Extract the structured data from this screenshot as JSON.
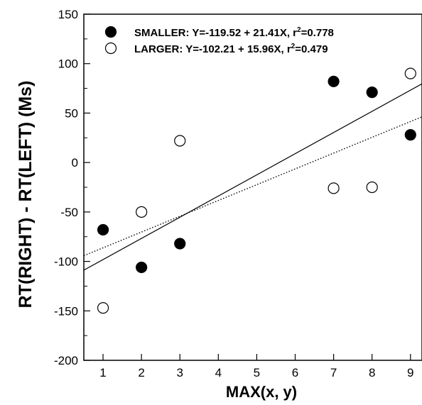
{
  "chart_data": {
    "type": "scatter",
    "xlabel": "MAX(x, y)",
    "ylabel": "RT(RIGHT) - RT(LEFT) (Ms)",
    "xlim": [
      0.5,
      9.3
    ],
    "ylim": [
      -200,
      150
    ],
    "x_ticks": [
      "1",
      "2",
      "3",
      "4",
      "5",
      "6",
      "7",
      "8",
      "9"
    ],
    "y_ticks": [
      "-200",
      "-150",
      "-100",
      "-50",
      "0",
      "50",
      "100",
      "150"
    ],
    "legend_position": "top-left",
    "series": [
      {
        "name": "SMALLER",
        "marker": "filled-circle",
        "fit_line": "solid",
        "legend_text": "SMALLER: Y=-119.52 + 21.41X, r",
        "legend_r2": "=0.778",
        "x": [
          1,
          2,
          3,
          7,
          8,
          9
        ],
        "y": [
          -68,
          -106,
          -82,
          82,
          71,
          28
        ],
        "fit": {
          "intercept": -119.52,
          "slope": 21.41
        }
      },
      {
        "name": "LARGER",
        "marker": "open-circle",
        "fit_line": "dotted",
        "legend_text": "LARGER: Y=-102.21 + 15.96X, r",
        "legend_r2": "=0.479",
        "x": [
          1,
          2,
          3,
          7,
          8,
          9
        ],
        "y": [
          -147,
          -50,
          22,
          -26,
          -25,
          90
        ],
        "fit": {
          "intercept": -102.21,
          "slope": 15.96
        }
      }
    ]
  }
}
